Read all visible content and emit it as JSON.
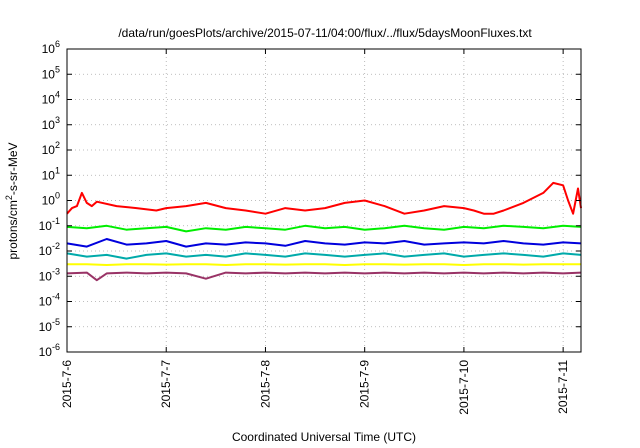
{
  "chart_data": {
    "type": "line",
    "title": "/data/run/goesPlots/archive/2015-07-11/04:00/flux/../flux/5daysMoonFluxes.txt",
    "xlabel": "Coordinated Universal Time (UTC)",
    "ylabel_parts": {
      "pre": "protons/cm",
      "sup": "2",
      "post": "-s-sr-MeV"
    },
    "yscale": "log",
    "ylim_exp": [
      -6,
      6
    ],
    "xlim_days": [
      0,
      5.18
    ],
    "x_ticks": [
      {
        "label": "2015-7-6",
        "day": 0
      },
      {
        "label": "2015-7-7",
        "day": 1
      },
      {
        "label": "2015-7-8",
        "day": 2
      },
      {
        "label": "2015-7-9",
        "day": 3
      },
      {
        "label": "2015-7-10",
        "day": 4
      },
      {
        "label": "2015-7-11",
        "day": 5
      }
    ],
    "y_ticks": [
      {
        "base": "10",
        "exp": "-6",
        "value": -6
      },
      {
        "base": "10",
        "exp": "-5",
        "value": -5
      },
      {
        "base": "10",
        "exp": "-4",
        "value": -4
      },
      {
        "base": "10",
        "exp": "-3",
        "value": -3
      },
      {
        "base": "10",
        "exp": "-2",
        "value": -2
      },
      {
        "base": "10",
        "exp": "-1",
        "value": -1
      },
      {
        "base": "10",
        "exp": "0",
        "value": 0
      },
      {
        "base": "10",
        "exp": "1",
        "value": 1
      },
      {
        "base": "10",
        "exp": "2",
        "value": 2
      },
      {
        "base": "10",
        "exp": "3",
        "value": 3
      },
      {
        "base": "10",
        "exp": "4",
        "value": 4
      },
      {
        "base": "10",
        "exp": "5",
        "value": 5
      },
      {
        "base": "10",
        "exp": "6",
        "value": 6
      }
    ],
    "grid": true,
    "series": [
      {
        "color": "#ff0000",
        "x": [
          0,
          0.05,
          0.1,
          0.15,
          0.2,
          0.25,
          0.3,
          0.5,
          0.7,
          0.9,
          1.0,
          1.2,
          1.4,
          1.6,
          1.8,
          2.0,
          2.2,
          2.4,
          2.6,
          2.8,
          3.0,
          3.2,
          3.4,
          3.6,
          3.8,
          4.0,
          4.1,
          4.2,
          4.3,
          4.4,
          4.6,
          4.8,
          4.9,
          5.0,
          5.05,
          5.1,
          5.15,
          5.18
        ],
        "y": [
          0.3,
          0.5,
          0.6,
          2.0,
          0.8,
          0.6,
          0.9,
          0.6,
          0.5,
          0.4,
          0.5,
          0.6,
          0.8,
          0.5,
          0.4,
          0.3,
          0.5,
          0.4,
          0.5,
          0.8,
          1.0,
          0.6,
          0.3,
          0.4,
          0.6,
          0.5,
          0.4,
          0.3,
          0.3,
          0.4,
          0.8,
          2.0,
          5.0,
          4.0,
          1.0,
          0.3,
          3.0,
          0.5
        ]
      },
      {
        "color": "#00ee00",
        "x": [
          0,
          0.2,
          0.4,
          0.6,
          0.8,
          1.0,
          1.2,
          1.4,
          1.6,
          1.8,
          2.0,
          2.2,
          2.4,
          2.6,
          2.8,
          3.0,
          3.2,
          3.4,
          3.6,
          3.8,
          4.0,
          4.2,
          4.4,
          4.6,
          4.8,
          5.0,
          5.18
        ],
        "y": [
          0.09,
          0.08,
          0.1,
          0.07,
          0.08,
          0.09,
          0.06,
          0.08,
          0.07,
          0.09,
          0.08,
          0.07,
          0.1,
          0.08,
          0.09,
          0.07,
          0.08,
          0.1,
          0.08,
          0.07,
          0.09,
          0.08,
          0.1,
          0.09,
          0.08,
          0.1,
          0.09
        ]
      },
      {
        "color": "#0000dd",
        "x": [
          0,
          0.2,
          0.4,
          0.6,
          0.8,
          1.0,
          1.2,
          1.4,
          1.6,
          1.8,
          2.0,
          2.2,
          2.4,
          2.6,
          2.8,
          3.0,
          3.2,
          3.4,
          3.6,
          3.8,
          4.0,
          4.2,
          4.4,
          4.6,
          4.8,
          5.0,
          5.18
        ],
        "y": [
          0.02,
          0.015,
          0.03,
          0.018,
          0.02,
          0.025,
          0.015,
          0.02,
          0.018,
          0.022,
          0.02,
          0.016,
          0.025,
          0.02,
          0.018,
          0.022,
          0.02,
          0.025,
          0.018,
          0.02,
          0.022,
          0.02,
          0.025,
          0.02,
          0.018,
          0.022,
          0.02
        ]
      },
      {
        "color": "#00aaaa",
        "x": [
          0,
          0.2,
          0.4,
          0.6,
          0.8,
          1.0,
          1.2,
          1.4,
          1.6,
          1.8,
          2.0,
          2.2,
          2.4,
          2.6,
          2.8,
          3.0,
          3.2,
          3.4,
          3.6,
          3.8,
          4.0,
          4.2,
          4.4,
          4.6,
          4.8,
          5.0,
          5.18
        ],
        "y": [
          0.008,
          0.006,
          0.007,
          0.005,
          0.007,
          0.008,
          0.006,
          0.007,
          0.006,
          0.008,
          0.007,
          0.006,
          0.008,
          0.007,
          0.006,
          0.007,
          0.008,
          0.006,
          0.007,
          0.008,
          0.006,
          0.007,
          0.008,
          0.007,
          0.006,
          0.008,
          0.007
        ]
      },
      {
        "color": "#ffff00",
        "x": [
          0,
          0.2,
          0.4,
          0.6,
          0.8,
          1.0,
          1.2,
          1.4,
          1.6,
          1.8,
          2.0,
          2.2,
          2.4,
          2.6,
          2.8,
          3.0,
          3.2,
          3.4,
          3.6,
          3.8,
          4.0,
          4.2,
          4.4,
          4.6,
          4.8,
          5.0,
          5.18
        ],
        "y": [
          0.003,
          0.003,
          0.0028,
          0.003,
          0.003,
          0.0029,
          0.003,
          0.003,
          0.0028,
          0.003,
          0.003,
          0.0029,
          0.003,
          0.003,
          0.0028,
          0.003,
          0.003,
          0.0029,
          0.003,
          0.003,
          0.0028,
          0.003,
          0.003,
          0.0029,
          0.003,
          0.003,
          0.003
        ]
      },
      {
        "color": "#993366",
        "x": [
          0,
          0.2,
          0.3,
          0.4,
          0.6,
          0.8,
          1.0,
          1.2,
          1.4,
          1.6,
          1.8,
          2.0,
          2.2,
          2.4,
          2.6,
          2.8,
          3.0,
          3.2,
          3.4,
          3.6,
          3.8,
          4.0,
          4.2,
          4.4,
          4.6,
          4.8,
          5.0,
          5.18
        ],
        "y": [
          0.0013,
          0.0014,
          0.0007,
          0.0013,
          0.0014,
          0.0013,
          0.0014,
          0.0013,
          0.0008,
          0.0014,
          0.0013,
          0.0014,
          0.0013,
          0.0014,
          0.0013,
          0.0014,
          0.0013,
          0.0014,
          0.0013,
          0.0014,
          0.0013,
          0.0014,
          0.0013,
          0.0014,
          0.0013,
          0.0014,
          0.0013,
          0.0014
        ]
      }
    ]
  }
}
